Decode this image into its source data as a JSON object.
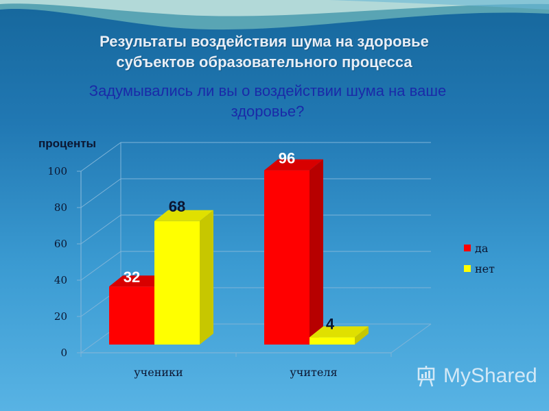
{
  "header": {
    "title_line1": "Результаты воздействия шума на здоровье",
    "title_line2": "субъектов образовательного процесса",
    "question_line1": "Задумывались ли вы  о воздействии шума на ваше",
    "question_line2": "здоровье?"
  },
  "watermark": {
    "text": "MyShared",
    "icon": "presentation-board-icon"
  },
  "colors": {
    "yes": "#ff0000",
    "yes_dark": "#b70000",
    "yes_top": "#d80000",
    "no": "#ffff00",
    "no_dark": "#c7c700",
    "no_top": "#e0e000",
    "grid": "#7fb4d8",
    "label_white": "#ffffff",
    "label_dark": "#0b1530"
  },
  "chart_data": {
    "type": "bar",
    "three_d": true,
    "ylabel": "проценты",
    "xlabel": "",
    "ylim": [
      0,
      100
    ],
    "yticks": [
      0,
      20,
      40,
      60,
      80,
      100
    ],
    "grid": true,
    "legend_position": "right",
    "categories": [
      "ученики",
      "учителя"
    ],
    "series": [
      {
        "name": "да",
        "values": [
          32,
          96
        ]
      },
      {
        "name": "нет",
        "values": [
          68,
          4
        ]
      }
    ]
  }
}
